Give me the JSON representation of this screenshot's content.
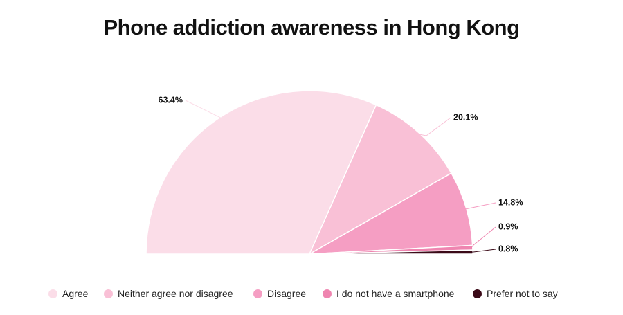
{
  "chart_data": {
    "type": "pie",
    "variant": "half-donut (semicircle)",
    "title": "Phone addiction awareness in Hong Kong",
    "legend_position": "bottom",
    "slices": [
      {
        "label": "Agree",
        "value": 63.4,
        "value_label": "63.4%",
        "color": "#fbdde8"
      },
      {
        "label": "Neither agree nor disagree",
        "value": 20.1,
        "value_label": "20.1%",
        "color": "#f9c0d6"
      },
      {
        "label": "Disagree",
        "value": 14.8,
        "value_label": "14.8%",
        "color": "#f59ec3"
      },
      {
        "label": "I do not have a smartphone",
        "value": 0.9,
        "value_label": "0.9%",
        "color": "#ef85b0"
      },
      {
        "label": "Prefer not to say",
        "value": 0.8,
        "value_label": "0.8%",
        "color": "#3b0a18"
      }
    ]
  }
}
